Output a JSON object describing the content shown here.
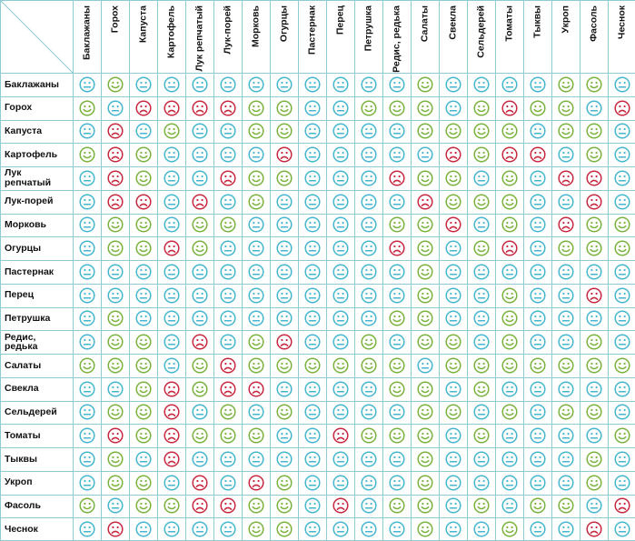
{
  "columns": [
    "Баклажаны",
    "Горох",
    "Капуста",
    "Картофель",
    "Лук\nрепчатый",
    "Лук-порей",
    "Морковь",
    "Огурцы",
    "Пастернак",
    "Перец",
    "Петрушка",
    "Редис,\nредька",
    "Салаты",
    "Свекла",
    "Сельдерей",
    "Томаты",
    "Тыквы",
    "Укроп",
    "Фасоль",
    "Чеснок"
  ],
  "rows": [
    {
      "label": "Баклажаны",
      "cells": [
        "n",
        "g",
        "n",
        "n",
        "n",
        "n",
        "n",
        "n",
        "n",
        "n",
        "n",
        "n",
        "g",
        "n",
        "n",
        "n",
        "n",
        "g",
        "g",
        "n"
      ]
    },
    {
      "label": "Горох",
      "cells": [
        "g",
        "n",
        "b",
        "b",
        "b",
        "b",
        "g",
        "g",
        "n",
        "n",
        "g",
        "g",
        "g",
        "n",
        "g",
        "b",
        "g",
        "g",
        "n",
        "b"
      ]
    },
    {
      "label": "Капуста",
      "cells": [
        "n",
        "b",
        "n",
        "g",
        "n",
        "n",
        "g",
        "g",
        "n",
        "n",
        "n",
        "n",
        "g",
        "g",
        "g",
        "g",
        "n",
        "g",
        "g",
        "n"
      ]
    },
    {
      "label": "Картофель",
      "cells": [
        "g",
        "b",
        "g",
        "n",
        "n",
        "n",
        "n",
        "b",
        "n",
        "n",
        "n",
        "n",
        "n",
        "b",
        "g",
        "b",
        "b",
        "n",
        "g",
        "n"
      ]
    },
    {
      "label": "Лук\nрепчатый",
      "cells": [
        "n",
        "b",
        "g",
        "n",
        "n",
        "b",
        "g",
        "g",
        "n",
        "n",
        "n",
        "b",
        "g",
        "g",
        "n",
        "g",
        "n",
        "b",
        "b",
        "n"
      ]
    },
    {
      "label": "Лук-порей",
      "cells": [
        "n",
        "b",
        "b",
        "n",
        "b",
        "n",
        "g",
        "n",
        "n",
        "n",
        "n",
        "n",
        "b",
        "g",
        "g",
        "g",
        "n",
        "n",
        "b",
        "n"
      ]
    },
    {
      "label": "Морковь",
      "cells": [
        "n",
        "g",
        "g",
        "n",
        "g",
        "g",
        "n",
        "n",
        "n",
        "n",
        "n",
        "g",
        "g",
        "b",
        "n",
        "g",
        "n",
        "b",
        "g",
        "g"
      ]
    },
    {
      "label": "Огурцы",
      "cells": [
        "n",
        "g",
        "g",
        "b",
        "g",
        "n",
        "n",
        "n",
        "n",
        "n",
        "n",
        "b",
        "g",
        "n",
        "g",
        "b",
        "n",
        "g",
        "g",
        "g"
      ]
    },
    {
      "label": "Пастернак",
      "cells": [
        "n",
        "n",
        "n",
        "n",
        "n",
        "n",
        "n",
        "n",
        "n",
        "n",
        "n",
        "n",
        "g",
        "n",
        "n",
        "n",
        "n",
        "n",
        "n",
        "n"
      ]
    },
    {
      "label": "Перец",
      "cells": [
        "n",
        "n",
        "n",
        "n",
        "n",
        "n",
        "n",
        "n",
        "n",
        "n",
        "n",
        "n",
        "g",
        "n",
        "n",
        "g",
        "n",
        "n",
        "b",
        "n"
      ]
    },
    {
      "label": "Петрушка",
      "cells": [
        "n",
        "g",
        "n",
        "n",
        "n",
        "n",
        "n",
        "n",
        "n",
        "n",
        "n",
        "g",
        "g",
        "n",
        "n",
        "g",
        "n",
        "n",
        "n",
        "n"
      ]
    },
    {
      "label": "Редис,\nредька",
      "cells": [
        "n",
        "g",
        "g",
        "n",
        "b",
        "n",
        "g",
        "b",
        "n",
        "n",
        "g",
        "n",
        "g",
        "g",
        "n",
        "g",
        "n",
        "n",
        "g",
        "n"
      ]
    },
    {
      "label": "Салаты",
      "cells": [
        "g",
        "g",
        "g",
        "n",
        "g",
        "b",
        "g",
        "g",
        "g",
        "g",
        "g",
        "g",
        "n",
        "g",
        "g",
        "g",
        "g",
        "g",
        "g",
        "g"
      ]
    },
    {
      "label": "Свекла",
      "cells": [
        "n",
        "n",
        "g",
        "b",
        "g",
        "b",
        "b",
        "n",
        "n",
        "n",
        "n",
        "g",
        "g",
        "n",
        "g",
        "n",
        "n",
        "n",
        "n",
        "n"
      ]
    },
    {
      "label": "Сельдерей",
      "cells": [
        "n",
        "g",
        "g",
        "b",
        "n",
        "g",
        "n",
        "g",
        "n",
        "n",
        "n",
        "n",
        "g",
        "g",
        "n",
        "g",
        "n",
        "g",
        "g",
        "n"
      ]
    },
    {
      "label": "Томаты",
      "cells": [
        "n",
        "b",
        "g",
        "b",
        "g",
        "g",
        "g",
        "n",
        "n",
        "b",
        "g",
        "g",
        "g",
        "n",
        "g",
        "n",
        "n",
        "n",
        "n",
        "g"
      ]
    },
    {
      "label": "Тыквы",
      "cells": [
        "n",
        "g",
        "n",
        "b",
        "n",
        "n",
        "n",
        "n",
        "n",
        "n",
        "n",
        "n",
        "g",
        "n",
        "n",
        "n",
        "n",
        "n",
        "g",
        "n"
      ]
    },
    {
      "label": "Укроп",
      "cells": [
        "n",
        "g",
        "g",
        "n",
        "b",
        "n",
        "b",
        "g",
        "n",
        "n",
        "n",
        "n",
        "g",
        "n",
        "n",
        "n",
        "n",
        "n",
        "g",
        "n"
      ]
    },
    {
      "label": "Фасоль",
      "cells": [
        "g",
        "n",
        "g",
        "g",
        "b",
        "b",
        "g",
        "g",
        "n",
        "b",
        "n",
        "g",
        "g",
        "n",
        "g",
        "n",
        "g",
        "g",
        "n",
        "b"
      ]
    },
    {
      "label": "Чеснок",
      "cells": [
        "n",
        "b",
        "n",
        "n",
        "n",
        "n",
        "g",
        "g",
        "n",
        "n",
        "n",
        "n",
        "g",
        "n",
        "n",
        "g",
        "n",
        "n",
        "b",
        "n"
      ]
    }
  ],
  "legend_semantics": {
    "g": "good-companion",
    "n": "neutral",
    "b": "bad-companion"
  },
  "colors": {
    "good": "#79b33d",
    "neutral": "#45b6cf",
    "bad": "#c8283f",
    "grid": "#8fcbd0"
  }
}
